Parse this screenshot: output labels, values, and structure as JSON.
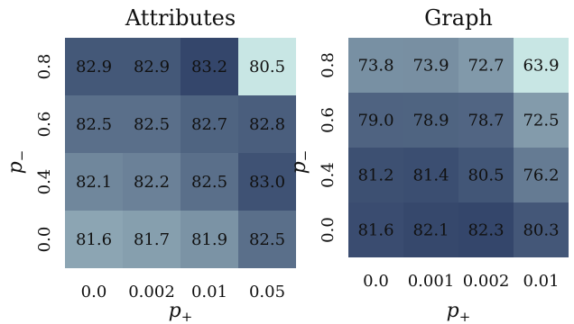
{
  "chart_data": [
    {
      "type": "heatmap",
      "title": "Attributes",
      "xlabel": "p",
      "xlabel_sub": "+",
      "ylabel": "p",
      "ylabel_sub": "−",
      "x_ticks": [
        "0.0",
        "0.002",
        "0.01",
        "0.05"
      ],
      "y_ticks": [
        "0.8",
        "0.6",
        "0.4",
        "0.0"
      ],
      "values": [
        [
          "82.9",
          "82.9",
          "83.2",
          "80.5"
        ],
        [
          "82.5",
          "82.5",
          "82.7",
          "82.8"
        ],
        [
          "82.1",
          "82.2",
          "82.5",
          "83.0"
        ],
        [
          "81.6",
          "81.7",
          "81.9",
          "82.5"
        ]
      ],
      "colorscale": {
        "min": 80.5,
        "max": 83.2,
        "low_color": "#c8e6e4",
        "high_color": "#34466b"
      }
    },
    {
      "type": "heatmap",
      "title": "Graph",
      "xlabel": "p",
      "xlabel_sub": "+",
      "ylabel": "p",
      "ylabel_sub": "−",
      "x_ticks": [
        "0.0",
        "0.001",
        "0.002",
        "0.01"
      ],
      "y_ticks": [
        "0.8",
        "0.6",
        "0.4",
        "0.0"
      ],
      "values": [
        [
          "73.8",
          "73.9",
          "72.7",
          "63.9"
        ],
        [
          "79.0",
          "78.9",
          "78.7",
          "72.5"
        ],
        [
          "81.2",
          "81.4",
          "80.5",
          "76.2"
        ],
        [
          "81.6",
          "82.1",
          "82.3",
          "80.3"
        ]
      ],
      "colorscale": {
        "min": 63.9,
        "max": 82.3,
        "low_color": "#c8e6e4",
        "high_color": "#34466b"
      }
    }
  ]
}
